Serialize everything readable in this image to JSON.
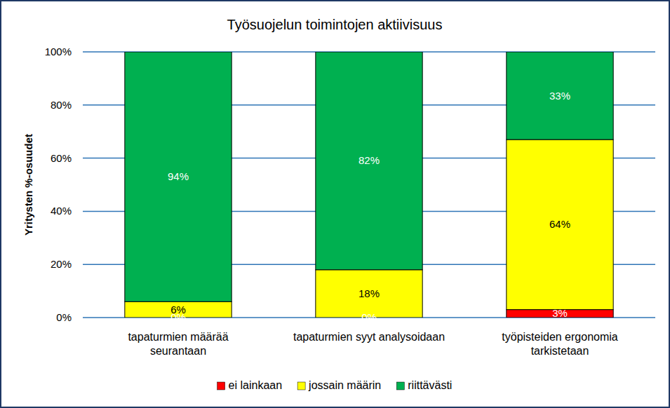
{
  "chart_data": {
    "type": "bar",
    "stacked": true,
    "data_labels": true,
    "grid": true,
    "legend": "bottom",
    "title": "Työsuojelun toimintojen aktiivisuus",
    "y_label": "Yritysten %-osuudet",
    "categories": [
      "tapaturmien määrää\nseurantaan",
      "tapaturmien syyt analysoidaan",
      "työpisteiden ergonomia\ntarkistetaan"
    ],
    "ylim": [
      0,
      100
    ],
    "yticks": [
      {
        "value": 0,
        "label": "0%"
      },
      {
        "value": 20,
        "label": "20%"
      },
      {
        "value": 40,
        "label": "40%"
      },
      {
        "value": 60,
        "label": "60%"
      },
      {
        "value": 80,
        "label": "80%"
      },
      {
        "value": 100,
        "label": "100%"
      }
    ],
    "series": [
      {
        "name": "ei lainkaan",
        "color": "#ff0000",
        "values": [
          0,
          0,
          3
        ],
        "value_labels": [
          "0%",
          "0%",
          "3%"
        ]
      },
      {
        "name": "jossain määrin",
        "color": "#ffff00",
        "values": [
          6,
          18,
          64
        ],
        "value_labels": [
          "6%",
          "18%",
          "64%"
        ]
      },
      {
        "name": "riittävästi",
        "color": "#00b050",
        "values": [
          94,
          82,
          33
        ],
        "value_labels": [
          "94%",
          "82%",
          "33%"
        ]
      }
    ]
  }
}
